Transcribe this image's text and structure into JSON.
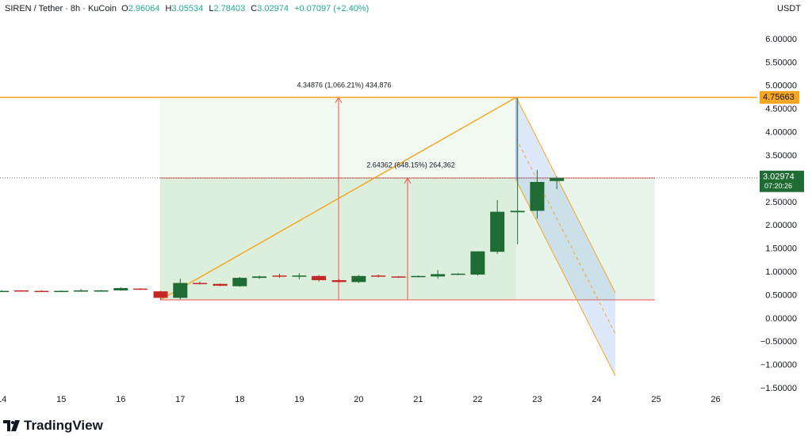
{
  "chart_data": {
    "type": "candlestick",
    "symbol": "SIREN / Tether · 8h · KuCoin",
    "legend_labels": [
      "O",
      "H",
      "L",
      "C"
    ],
    "change": "+0.07097 (+2.40%)",
    "currency": "USDT",
    "countdown": "07:20:26",
    "branding": "TradingView",
    "x": [
      14,
      14.33,
      14.67,
      15,
      15.33,
      15.67,
      16,
      16.33,
      16.67,
      17,
      17.33,
      17.67,
      18,
      18.33,
      18.67,
      19,
      19.33,
      19.67,
      20,
      20.33,
      20.67,
      21,
      21.33,
      21.67,
      22,
      22.33,
      22.67,
      23,
      23.33
    ],
    "open": [
      0.59,
      0.61,
      0.6,
      0.59,
      0.6,
      0.61,
      0.61,
      0.65,
      0.59,
      0.45,
      0.77,
      0.75,
      0.7,
      0.88,
      0.93,
      0.91,
      0.92,
      0.83,
      0.79,
      0.93,
      0.91,
      0.9,
      0.91,
      0.95,
      0.95,
      1.44,
      2.29,
      2.32,
      2.96064
    ],
    "high": [
      0.61,
      0.62,
      0.61,
      0.61,
      0.64,
      0.62,
      0.68,
      0.66,
      0.6,
      0.86,
      0.8,
      0.76,
      0.9,
      0.93,
      0.97,
      0.98,
      0.94,
      0.85,
      0.94,
      0.95,
      0.92,
      0.93,
      1.05,
      0.98,
      1.45,
      2.55,
      4.75663,
      3.2,
      3.05534
    ],
    "low": [
      0.58,
      0.6,
      0.59,
      0.58,
      0.58,
      0.6,
      0.6,
      0.62,
      0.40787,
      0.42,
      0.74,
      0.7,
      0.69,
      0.86,
      0.88,
      0.85,
      0.8,
      0.78,
      0.77,
      0.89,
      0.88,
      0.89,
      0.86,
      0.94,
      0.93,
      1.4,
      1.6,
      2.15,
      2.78403
    ],
    "close": [
      0.6,
      0.6,
      0.59,
      0.6,
      0.61,
      0.61,
      0.66,
      0.63,
      0.45,
      0.77,
      0.75,
      0.71,
      0.88,
      0.91,
      0.91,
      0.93,
      0.83,
      0.79,
      0.92,
      0.91,
      0.9,
      0.92,
      0.96,
      0.97,
      1.45,
      2.3,
      2.32,
      2.94,
      3.02974
    ],
    "up_color": "#1e6b33",
    "down_color": "#c62828",
    "hline": 4.75663,
    "hline_color": "#f5a623",
    "measures": [
      "4.34876 (1,066.21%) 434,876",
      "2.64362 (648.15%) 264,362"
    ],
    "xlim": [
      13.97,
      26.7
    ],
    "xticks": [
      14,
      15,
      16,
      17,
      18,
      19,
      20,
      21,
      22,
      23,
      24,
      25,
      26
    ],
    "ylim": [
      -1.6,
      6.85
    ],
    "yticks": [
      {
        "value": 6,
        "label": "6.00000"
      },
      {
        "value": 5.5,
        "label": "5.50000"
      },
      {
        "value": 5,
        "label": "5.00000"
      },
      {
        "value": 4.5,
        "label": "4.50000"
      },
      {
        "value": 4,
        "label": "4.00000"
      },
      {
        "value": 3.5,
        "label": "3.50000"
      },
      {
        "value": 3,
        "label": "3.00000"
      },
      {
        "value": 2.5,
        "label": "2.50000"
      },
      {
        "value": 2,
        "label": "2.00000"
      },
      {
        "value": 1.5,
        "label": "1.50000"
      },
      {
        "value": 1,
        "label": "1.00000"
      },
      {
        "value": 0.5,
        "label": "0.50000"
      },
      {
        "value": 0,
        "label": "0.00000"
      },
      {
        "value": -0.5,
        "label": "−0.50000"
      },
      {
        "value": -1,
        "label": "−1.00000"
      },
      {
        "value": -1.5,
        "label": "−1.50000"
      }
    ]
  }
}
